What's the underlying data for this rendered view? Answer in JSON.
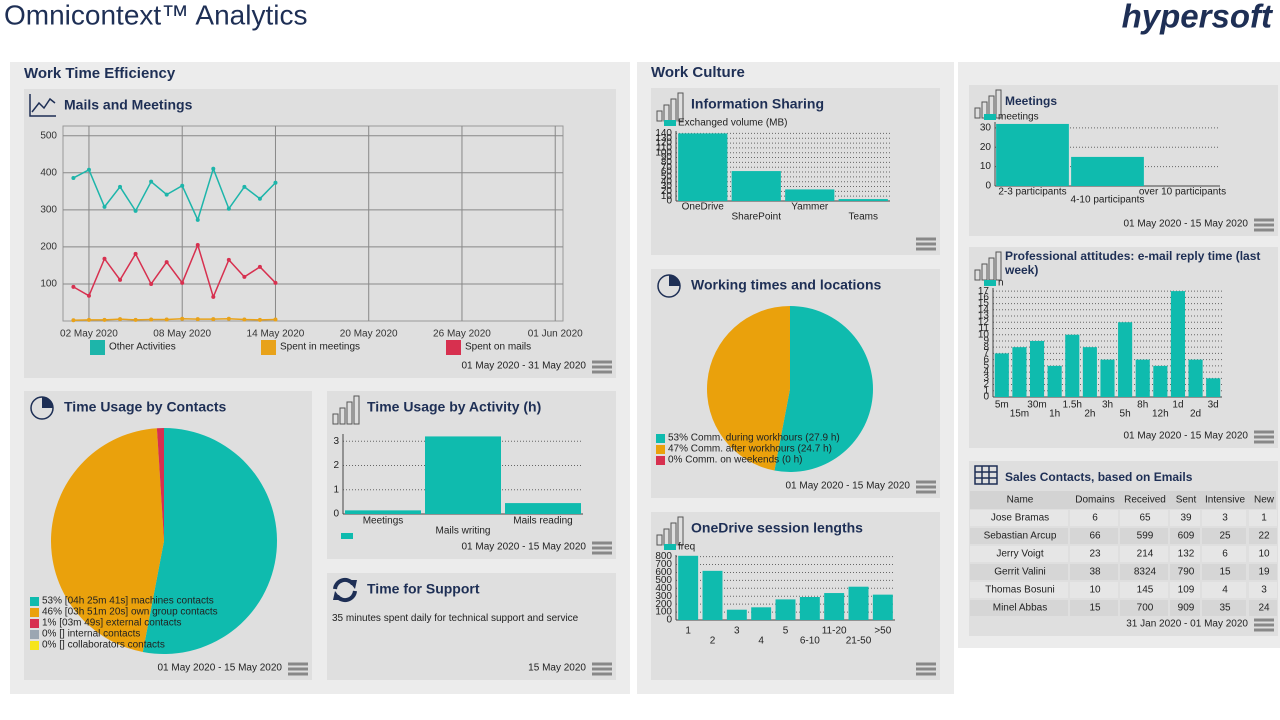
{
  "header": {
    "title": "Omnicontext™ Analytics",
    "logo": "hypersoft"
  },
  "sections": [
    "Work Time Efficiency",
    "Work Culture"
  ],
  "chart_data": [
    {
      "type": "line",
      "title": "Mails and Meetings",
      "date_range": "01 May 2020 - 31 May 2020",
      "x": [
        1,
        2,
        3,
        4,
        5,
        6,
        7,
        8,
        9,
        10,
        11,
        12,
        13,
        14
      ],
      "xlim": [
        0.33,
        32.5
      ],
      "xticks": [
        {
          "value": 2,
          "label": "02 May 2020"
        },
        {
          "value": 8,
          "label": "08 May 2020"
        },
        {
          "value": 14,
          "label": "14 May 2020"
        },
        {
          "value": 20,
          "label": "20 May 2020"
        },
        {
          "value": 26,
          "label": "26 May 2020"
        },
        {
          "value": 32,
          "label": "01 Jun 2020"
        }
      ],
      "ylim": [
        0,
        510
      ],
      "yticks": [
        100,
        200,
        300,
        400,
        500
      ],
      "grid": true,
      "series": [
        {
          "name": "Other Activities",
          "color": "#1db5aa",
          "values": [
            386,
            408,
            308,
            362,
            297,
            376,
            341,
            365,
            273,
            411,
            303,
            362,
            330,
            373
          ]
        },
        {
          "name": "Spent in meetings",
          "color": "#e8a21a",
          "values": [
            2,
            3,
            3,
            5,
            3,
            4,
            4,
            6,
            5,
            5,
            6,
            4,
            3,
            4
          ]
        },
        {
          "name": "Spent on mails",
          "color": "#d7304f",
          "values": [
            92,
            68,
            168,
            111,
            181,
            100,
            159,
            103,
            205,
            65,
            165,
            119,
            146,
            103
          ]
        }
      ]
    },
    {
      "type": "pie",
      "title": "Time Usage by Contacts",
      "date_range": "01 May 2020 - 15 May 2020",
      "categories": [
        "53% [04h 25m 41s] machines contacts",
        "46% [03h 51m 20s] own group contacts",
        "1% [03m 49s] external contacts",
        "0% [] internal contacts",
        "0% [] collaborators contacts"
      ],
      "values": [
        53,
        46,
        1,
        0,
        0
      ],
      "colors": [
        "#0fbbae",
        "#eaa10c",
        "#d7304f",
        "#9ba6b2",
        "#f6e51c"
      ]
    },
    {
      "type": "bar",
      "title": "Time Usage by Activity (h)",
      "date_range": "01 May 2020 - 15 May 2020",
      "categories": [
        "Meetings",
        "Mails writing",
        "Mails reading"
      ],
      "series": [
        {
          "color": "#0fbbae",
          "values": [
            0.15,
            3.2,
            0.45
          ]
        }
      ],
      "ylim": [
        0,
        3.3
      ],
      "yticks": [
        0,
        1,
        2,
        3
      ],
      "grid": true
    },
    {
      "type": "bar",
      "title": "Information Sharing",
      "categories": [
        "OneDrive",
        "SharePoint",
        "Yammer",
        "Teams"
      ],
      "series": [
        {
          "name": "Exchanged volume (MB)",
          "color": "#0fbbae",
          "values": [
            140,
            62,
            24,
            4
          ]
        }
      ],
      "ylim": [
        0,
        145
      ],
      "yticks": [
        0,
        10,
        20,
        30,
        40,
        50,
        60,
        70,
        80,
        90,
        100,
        110,
        120,
        130,
        140
      ],
      "grid": true
    },
    {
      "type": "pie",
      "title": "Working times and locations",
      "date_range": "01 May 2020 - 15 May 2020",
      "categories": [
        "53% Comm. during workhours (27.9 h)",
        "47% Comm. after workhours (24.7 h)",
        "0% Comm. on weekends (0 h)"
      ],
      "values": [
        53,
        47,
        0
      ],
      "colors": [
        "#0fbbae",
        "#eaa10c",
        "#d7304f"
      ]
    },
    {
      "type": "bar",
      "title": "OneDrive session lengths",
      "categories": [
        "1",
        "2",
        "3",
        "4",
        "5",
        "6-10",
        "11-20",
        "21-50",
        ">50"
      ],
      "series": [
        {
          "name": "freq",
          "color": "#0fbbae",
          "values": [
            810,
            620,
            130,
            160,
            260,
            290,
            340,
            420,
            320
          ]
        }
      ],
      "ylim": [
        0,
        820
      ],
      "yticks": [
        0,
        100,
        200,
        300,
        400,
        500,
        600,
        700,
        800
      ],
      "grid": true
    },
    {
      "type": "bar",
      "title": "Meetings",
      "date_range": "01 May 2020 - 15 May 2020",
      "categories": [
        "2-3 participants",
        "4-10 participants",
        "over 10 participants"
      ],
      "series": [
        {
          "name": "meetings",
          "color": "#0fbbae",
          "values": [
            32,
            15,
            0
          ]
        }
      ],
      "ylim": [
        0,
        33
      ],
      "yticks": [
        0,
        10,
        20,
        30
      ],
      "grid": true
    },
    {
      "type": "bar",
      "title": "Professional attitudes: e-mail reply time (last week)",
      "date_range": "01 May 2020 - 15 May 2020",
      "categories": [
        "5m",
        "15m",
        "30m",
        "1h",
        "1.5h",
        "2h",
        "3h",
        "5h",
        "8h",
        "12h",
        "1d",
        "2d",
        "3d"
      ],
      "series": [
        {
          "name": "n",
          "color": "#0fbbae",
          "values": [
            7,
            8,
            9,
            5,
            10,
            8,
            6,
            12,
            6,
            5,
            17,
            6,
            3
          ]
        }
      ],
      "ylim": [
        0,
        17.5
      ],
      "yticks": [
        0,
        1,
        2,
        3,
        4,
        5,
        6,
        7,
        8,
        9,
        10,
        11,
        12,
        13,
        14,
        15,
        16,
        17
      ],
      "grid": true
    }
  ],
  "support": {
    "title": "Time for Support",
    "text": "35 minutes spent daily for technical support and service",
    "date": "15 May 2020"
  },
  "table": {
    "title": "Sales Contacts, based on Emails",
    "date_range": "31 Jan 2020 - 01 May 2020",
    "columns": [
      "Name",
      "Domains",
      "Received",
      "Sent",
      "Intensive",
      "New"
    ],
    "rows": [
      [
        "Jose Bramas",
        6,
        65,
        39,
        3,
        1
      ],
      [
        "Sebastian Arcup",
        66,
        599,
        609,
        25,
        22
      ],
      [
        "Jerry Voigt",
        23,
        214,
        132,
        6,
        10
      ],
      [
        "Gerrit Valini",
        38,
        8324,
        790,
        15,
        19
      ],
      [
        "Thomas Bosuni",
        10,
        145,
        109,
        4,
        3
      ],
      [
        "Minel Abbas",
        15,
        700,
        909,
        35,
        24
      ]
    ]
  }
}
